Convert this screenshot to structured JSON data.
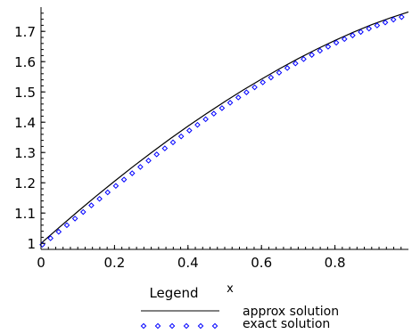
{
  "chart_data": {
    "type": "line",
    "title": "",
    "xlabel": "x",
    "ylabel": "",
    "xlim": [
      0,
      1.0
    ],
    "ylim": [
      0.98,
      1.78
    ],
    "x_ticks": [
      "0",
      "0.2",
      "0.4",
      "0.6",
      "0.8"
    ],
    "y_ticks": [
      "1",
      "1.1",
      "1.2",
      "1.3",
      "1.4",
      "1.5",
      "1.6",
      "1.7"
    ],
    "legend_title": "Legend",
    "legend_placement": "bottom",
    "grid": false,
    "x": [
      0,
      0.05,
      0.1,
      0.15,
      0.2,
      0.25,
      0.3,
      0.35,
      0.4,
      0.45,
      0.5,
      0.55,
      0.6,
      0.65,
      0.7,
      0.75,
      0.8,
      0.85,
      0.9,
      0.95,
      1.0
    ],
    "series": [
      {
        "name": "approx solution",
        "style": "solid-line",
        "color": "#000000",
        "values": [
          1.0,
          1.053,
          1.105,
          1.156,
          1.205,
          1.253,
          1.299,
          1.344,
          1.387,
          1.428,
          1.468,
          1.506,
          1.542,
          1.577,
          1.61,
          1.641,
          1.67,
          1.697,
          1.722,
          1.744,
          1.764
        ]
      },
      {
        "name": "exact solution",
        "style": "diamond-markers",
        "color": "#0000ff",
        "values": [
          1.0,
          1.048,
          1.097,
          1.146,
          1.194,
          1.241,
          1.288,
          1.333,
          1.377,
          1.419,
          1.46,
          1.499,
          1.536,
          1.572,
          1.606,
          1.637,
          1.667,
          1.694,
          1.719,
          1.741,
          1.76
        ]
      }
    ]
  }
}
